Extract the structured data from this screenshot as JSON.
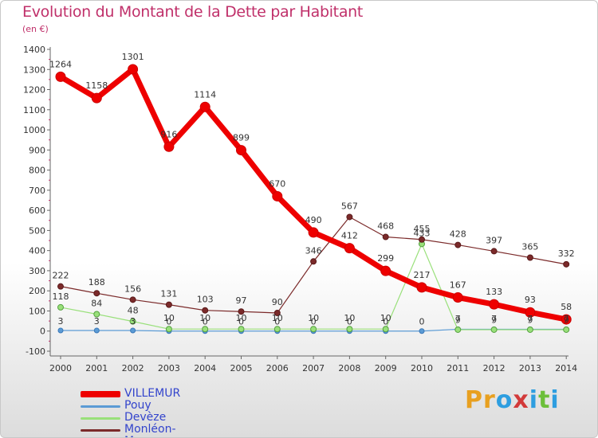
{
  "title": "Evolution du Montant de la Dette par Habitant",
  "unit": "(en €)",
  "brand": {
    "text": "Proxiti",
    "letter_colors": [
      "#e8a020",
      "#e8a020",
      "#2e9ee0",
      "#d23a3a",
      "#2e9ee0",
      "#6cbf3a",
      "#2e9ee0"
    ]
  },
  "chart_data": {
    "type": "line",
    "title": "Evolution du Montant de la Dette par Habitant",
    "subtitle": "(en €)",
    "xlabel": "",
    "ylabel": "",
    "ylim": [
      -100,
      1400
    ],
    "y_ticks": [
      -100,
      0,
      100,
      200,
      300,
      400,
      500,
      600,
      700,
      800,
      900,
      1000,
      1100,
      1200,
      1300,
      1400
    ],
    "grid": false,
    "legend_position": "bottom-left",
    "categories": [
      "2000",
      "2001",
      "2002",
      "2003",
      "2004",
      "2005",
      "2006",
      "2007",
      "2008",
      "2009",
      "2010",
      "2011",
      "2012",
      "2013",
      "2014"
    ],
    "series": [
      {
        "name": "VILLEMUR",
        "color": "#ee0000",
        "values": [
          1264,
          1158,
          1301,
          916,
          1114,
          899,
          670,
          490,
          412,
          299,
          217,
          167,
          133,
          93,
          58
        ]
      },
      {
        "name": "Pouy",
        "color": "#5b9bd5",
        "values": [
          3,
          3,
          3,
          0,
          0,
          0,
          0,
          0,
          0,
          0,
          0,
          9,
          9,
          9,
          9
        ]
      },
      {
        "name": "Devèze",
        "color": "#99e07a",
        "values": [
          118,
          84,
          48,
          10,
          10,
          10,
          10,
          10,
          10,
          10,
          433,
          7,
          7,
          7,
          7
        ]
      },
      {
        "name": "Monléon-Magnoac",
        "color": "#7b2a2a",
        "values": [
          222,
          188,
          156,
          131,
          103,
          97,
          90,
          346,
          567,
          468,
          455,
          428,
          397,
          365,
          332
        ]
      }
    ],
    "data_labels": [
      {
        "series": 0,
        "labels": [
          "1264",
          "1158",
          "1301",
          "916",
          "1114",
          "899",
          "670",
          "490",
          "412",
          "299",
          "217",
          "167",
          "133",
          "93",
          "58"
        ]
      },
      {
        "series": 1,
        "labels": [
          "3",
          "3",
          "3",
          "0",
          "0",
          "0",
          "0",
          "0",
          "0",
          "0",
          "0",
          "9",
          "9",
          "9",
          "9"
        ]
      },
      {
        "series": 2,
        "labels": [
          "118",
          "84",
          "48",
          "10",
          "10",
          "10",
          "10",
          "10",
          "10",
          "10",
          "433",
          "7",
          "7",
          "7",
          "7"
        ]
      },
      {
        "series": 3,
        "labels": [
          "222",
          "188",
          "156",
          "131",
          "103",
          "97",
          "90",
          "346",
          "567",
          "468",
          "455",
          "428",
          "397",
          "365",
          "332"
        ]
      }
    ]
  }
}
